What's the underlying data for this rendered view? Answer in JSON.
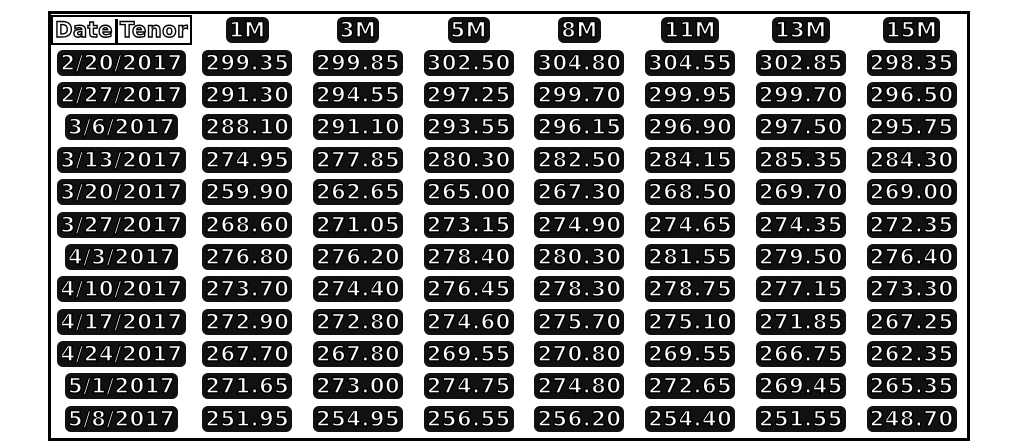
{
  "table": {
    "corner_left": "Date",
    "corner_right": "Tenor",
    "columns": [
      "1M",
      "3M",
      "5M",
      "8M",
      "11M",
      "13M",
      "15M"
    ],
    "rows": [
      {
        "date": "2/20/2017",
        "values": [
          "299.35",
          "299.85",
          "302.50",
          "304.80",
          "304.55",
          "302.85",
          "298.35"
        ]
      },
      {
        "date": "2/27/2017",
        "values": [
          "291.30",
          "294.55",
          "297.25",
          "299.70",
          "299.95",
          "299.70",
          "296.50"
        ]
      },
      {
        "date": "3/6/2017",
        "values": [
          "288.10",
          "291.10",
          "293.55",
          "296.15",
          "296.90",
          "297.50",
          "295.75"
        ]
      },
      {
        "date": "3/13/2017",
        "values": [
          "274.95",
          "277.85",
          "280.30",
          "282.50",
          "284.15",
          "285.35",
          "284.30"
        ]
      },
      {
        "date": "3/20/2017",
        "values": [
          "259.90",
          "262.65",
          "265.00",
          "267.30",
          "268.50",
          "269.70",
          "269.00"
        ]
      },
      {
        "date": "3/27/2017",
        "values": [
          "268.60",
          "271.05",
          "273.15",
          "274.90",
          "274.65",
          "274.35",
          "272.35"
        ]
      },
      {
        "date": "4/3/2017",
        "values": [
          "276.80",
          "276.20",
          "278.40",
          "280.30",
          "281.55",
          "279.50",
          "276.40"
        ]
      },
      {
        "date": "4/10/2017",
        "values": [
          "273.70",
          "274.40",
          "276.45",
          "278.30",
          "278.75",
          "277.15",
          "273.30"
        ]
      },
      {
        "date": "4/17/2017",
        "values": [
          "272.90",
          "272.80",
          "274.60",
          "275.70",
          "275.10",
          "271.85",
          "267.25"
        ]
      },
      {
        "date": "4/24/2017",
        "values": [
          "267.70",
          "267.80",
          "269.55",
          "270.80",
          "269.55",
          "266.75",
          "262.35"
        ]
      },
      {
        "date": "5/1/2017",
        "values": [
          "271.65",
          "273.00",
          "274.75",
          "274.80",
          "272.65",
          "269.45",
          "265.35"
        ]
      },
      {
        "date": "5/8/2017",
        "values": [
          "251.95",
          "254.95",
          "256.55",
          "256.20",
          "254.40",
          "251.55",
          "248.70"
        ]
      }
    ]
  }
}
